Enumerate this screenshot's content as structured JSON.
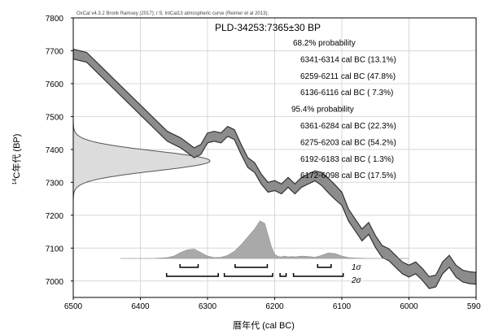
{
  "chart_data": {
    "type": "area",
    "header_note": "OxCal v4.3.2 Bronk Ramsey (2017); r:5; IntCal13 atmospheric curve (Reimer et al 2013);",
    "sample_label": "PLD-34253:7365±30 BP",
    "xlabel": "暦年代 (cal BC)",
    "ylabel_sup": "14",
    "ylabel_main": "C年代 (BP)",
    "xlim": [
      6500,
      5900
    ],
    "ylim": [
      6950,
      7800
    ],
    "grid": true,
    "x_ticks": [
      6500,
      6400,
      6300,
      6200,
      6100,
      6000,
      5900
    ],
    "y_ticks": [
      7000,
      7100,
      7200,
      7300,
      7400,
      7500,
      7600,
      7700,
      7800
    ],
    "probability_text": [
      "68.2% probability",
      "6341-6314 cal BC (13.1%)",
      "6259-6211 cal BC (47.8%)",
      "6136-6116 cal BC ( 7.3%)",
      "95.4% probability",
      "6361-6284 cal BC (22.3%)",
      "6275-6203 cal BC (54.2%)",
      "6192-6183 cal BC ( 1.3%)",
      "6172-6098 cal BC (17.5%)"
    ],
    "calibration_curve": {
      "name": "IntCal13",
      "x": [
        6500,
        6480,
        6460,
        6440,
        6420,
        6400,
        6380,
        6360,
        6340,
        6320,
        6310,
        6300,
        6290,
        6280,
        6270,
        6260,
        6250,
        6240,
        6230,
        6220,
        6210,
        6200,
        6190,
        6180,
        6170,
        6160,
        6150,
        6140,
        6130,
        6120,
        6110,
        6100,
        6090,
        6080,
        6070,
        6060,
        6050,
        6040,
        6030,
        6020,
        6010,
        6000,
        5990,
        5980,
        5970,
        5960,
        5950,
        5940,
        5930,
        5920,
        5910,
        5900
      ],
      "y": [
        7690,
        7680,
        7640,
        7600,
        7560,
        7520,
        7480,
        7440,
        7420,
        7390,
        7400,
        7435,
        7440,
        7435,
        7455,
        7445,
        7400,
        7360,
        7345,
        7310,
        7285,
        7290,
        7280,
        7300,
        7280,
        7300,
        7310,
        7320,
        7310,
        7290,
        7270,
        7250,
        7200,
        7170,
        7140,
        7160,
        7120,
        7090,
        7080,
        7060,
        7040,
        7030,
        7040,
        7020,
        6995,
        7000,
        7040,
        7060,
        7030,
        7015,
        7010,
        7008
      ],
      "half_width": [
        15,
        15,
        15,
        15,
        15,
        15,
        15,
        15,
        15,
        15,
        15,
        15,
        15,
        15,
        15,
        15,
        15,
        15,
        15,
        15,
        15,
        15,
        15,
        15,
        15,
        15,
        15,
        15,
        20,
        22,
        22,
        20,
        18,
        18,
        18,
        18,
        18,
        18,
        18,
        18,
        18,
        18,
        18,
        18,
        18,
        18,
        18,
        18,
        18,
        18,
        18,
        18
      ]
    },
    "radiocarbon_date": {
      "mean_bp": 7365,
      "sigma_bp": 30
    },
    "calibrated_distribution": {
      "x": [
        6430,
        6380,
        6360,
        6350,
        6340,
        6330,
        6320,
        6310,
        6300,
        6290,
        6280,
        6270,
        6260,
        6250,
        6240,
        6230,
        6222,
        6215,
        6210,
        6205,
        6200,
        6195,
        6190,
        6185,
        6180,
        6175,
        6170,
        6160,
        6150,
        6140,
        6130,
        6120,
        6110,
        6100,
        6090,
        6080,
        6060,
        6000
      ],
      "density": [
        0,
        0,
        0.02,
        0.06,
        0.15,
        0.22,
        0.24,
        0.15,
        0.06,
        0.02,
        0.03,
        0.08,
        0.18,
        0.35,
        0.55,
        0.75,
        0.96,
        0.9,
        0.6,
        0.3,
        0.1,
        0.05,
        0.04,
        0.06,
        0.04,
        0.05,
        0.04,
        0.06,
        0.05,
        0.03,
        0.08,
        0.14,
        0.12,
        0.06,
        0.02,
        0.01,
        0,
        0
      ]
    },
    "sigma_labels": [
      "1σ",
      "2σ"
    ],
    "ranges_1sigma": [
      [
        6341,
        6314
      ],
      [
        6259,
        6211
      ],
      [
        6136,
        6116
      ]
    ],
    "ranges_2sigma": [
      [
        6361,
        6284
      ],
      [
        6275,
        6203
      ],
      [
        6192,
        6183
      ],
      [
        6172,
        6098
      ]
    ]
  }
}
